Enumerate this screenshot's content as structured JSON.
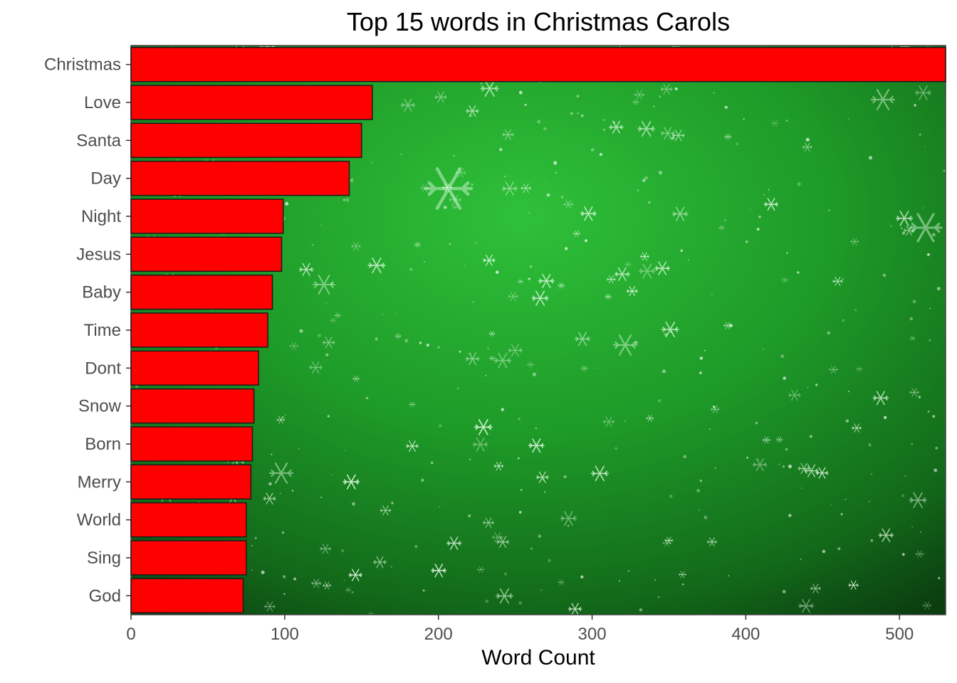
{
  "chart_data": {
    "type": "bar",
    "orientation": "horizontal",
    "title": "Top 15 words in Christmas Carols",
    "xlabel": "Word Count",
    "ylabel": "",
    "categories": [
      "Christmas",
      "Love",
      "Santa",
      "Day",
      "Night",
      "Jesus",
      "Baby",
      "Time",
      "Dont",
      "Snow",
      "Born",
      "Merry",
      "World",
      "Sing",
      "God"
    ],
    "values": [
      530,
      157,
      150,
      142,
      99,
      98,
      92,
      89,
      83,
      80,
      79,
      78,
      75,
      75,
      73
    ],
    "xlim": [
      0,
      530
    ],
    "xticks": [
      0,
      100,
      200,
      300,
      400,
      500
    ],
    "grid": false,
    "legend": "none",
    "bar_color": "#ff0000",
    "bar_outline_color": "#1a1a1a",
    "background": "green snowflake image"
  }
}
